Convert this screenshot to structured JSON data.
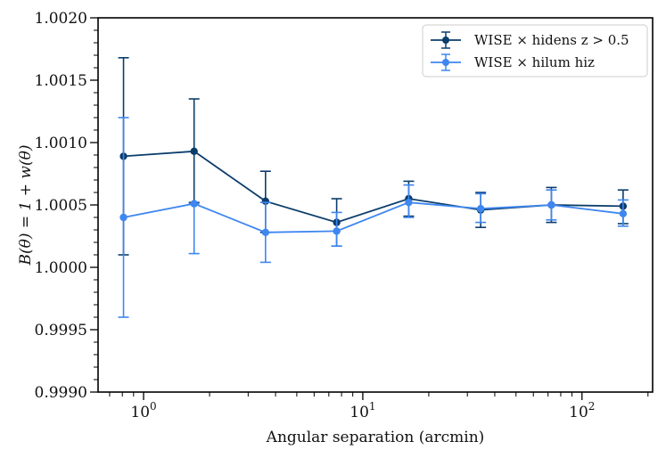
{
  "chart_data": {
    "type": "line",
    "xscale": "log",
    "xlim": [
      0.62,
      210
    ],
    "ylim": [
      0.999,
      1.002
    ],
    "xlabel": "Angular separation (arcmin)",
    "ylabel": "B(θ) = 1 + w(θ)",
    "xticks": [
      {
        "value": 1,
        "base": "10",
        "exp": "0"
      },
      {
        "value": 10,
        "base": "10",
        "exp": "1"
      },
      {
        "value": 100,
        "base": "10",
        "exp": "2"
      }
    ],
    "yticks": [
      {
        "value": 0.999,
        "label": "0.9990"
      },
      {
        "value": 0.9995,
        "label": "0.9995"
      },
      {
        "value": 1.0,
        "label": "1.0000"
      },
      {
        "value": 1.0005,
        "label": "1.0005"
      },
      {
        "value": 1.001,
        "label": "1.0010"
      },
      {
        "value": 1.0015,
        "label": "1.0015"
      },
      {
        "value": 1.002,
        "label": "1.0020"
      }
    ],
    "legend_position": "top-right",
    "grid": false,
    "series": [
      {
        "name": "WISE × hidens z > 0.5",
        "color": "#0b3d6b",
        "x": [
          0.81,
          1.7,
          3.6,
          7.6,
          16.2,
          34.5,
          72.5,
          154
        ],
        "y": [
          1.00089,
          1.00093,
          1.00053,
          1.00036,
          1.00055,
          1.00046,
          1.0005,
          1.00049
        ],
        "yerr_low": [
          1.0001,
          1.00052,
          1.00028,
          1.00017,
          1.00041,
          1.00032,
          1.00036,
          1.00035
        ],
        "yerr_high": [
          1.00168,
          1.00135,
          1.00077,
          1.00055,
          1.00069,
          1.0006,
          1.00064,
          1.00062
        ]
      },
      {
        "name": "WISE × hilum hiz",
        "color": "#3e86f0",
        "x": [
          0.81,
          1.7,
          3.6,
          7.6,
          16.2,
          34.5,
          72.5,
          154
        ],
        "y": [
          1.0004,
          1.00051,
          1.00028,
          1.00029,
          1.00052,
          1.00047,
          1.0005,
          1.00043
        ],
        "yerr_low": [
          0.9996,
          1.00011,
          1.00004,
          1.00017,
          1.0004,
          1.00036,
          1.00038,
          1.00033
        ],
        "yerr_high": [
          1.0012,
          1.00051,
          1.00052,
          1.00044,
          1.00066,
          1.00059,
          1.00062,
          1.00054
        ]
      }
    ]
  }
}
